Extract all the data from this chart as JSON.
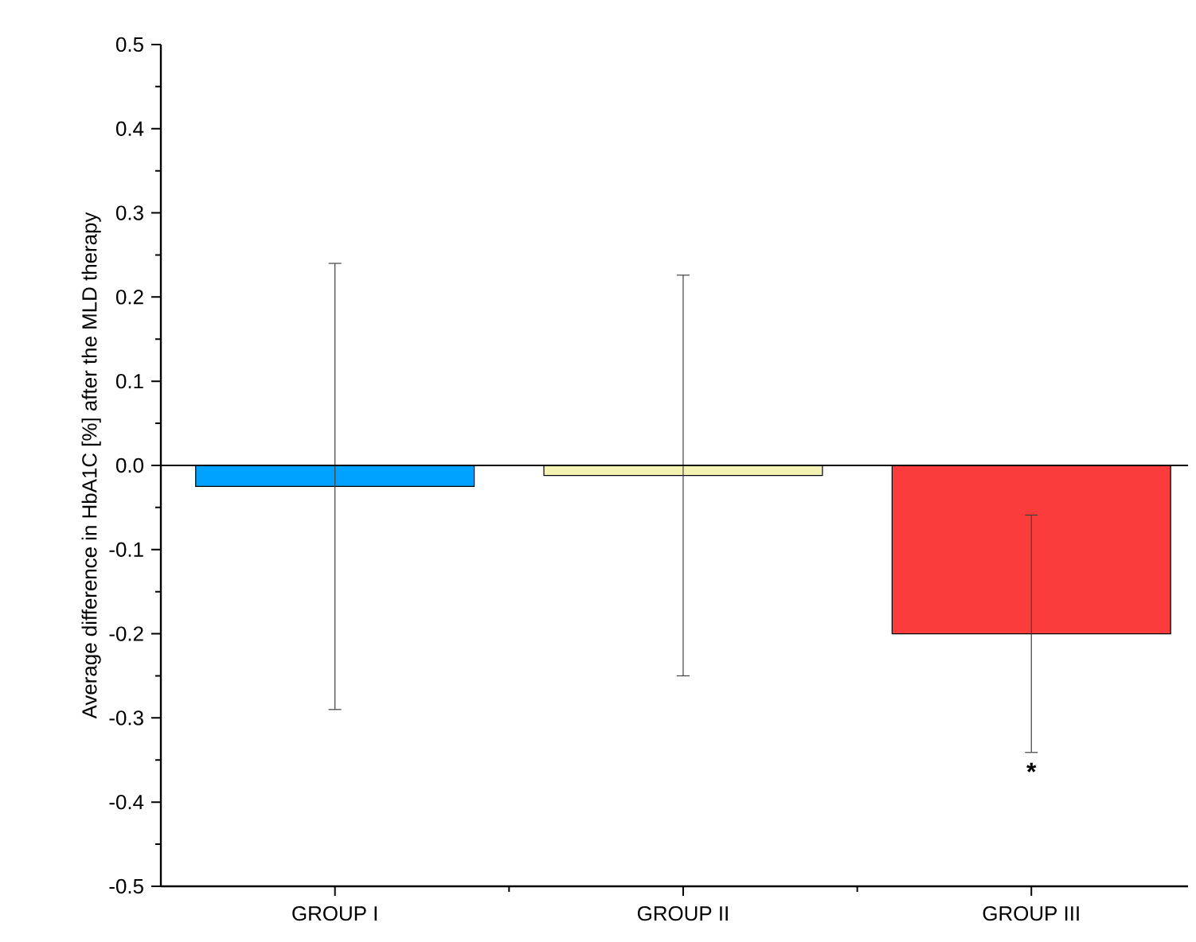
{
  "chart_data": {
    "type": "bar",
    "ylabel": "Average difference in HbA1C [%] after the MLD therapy",
    "categories": [
      "GROUP I",
      "GROUP II",
      "GROUP III"
    ],
    "values": [
      -0.025,
      -0.012,
      -0.2
    ],
    "errors": [
      0.265,
      0.238,
      0.141
    ],
    "colors": [
      "#00a2ff",
      "#f5f3b4",
      "#fa3c3c"
    ],
    "ylim": [
      -0.5,
      0.5
    ],
    "yticks": [
      -0.5,
      -0.4,
      -0.3,
      -0.2,
      -0.1,
      {
        "value": 0,
        "label": "0.0"
      },
      0.1,
      0.2,
      0.3,
      0.4,
      0.5
    ],
    "annotations": [
      "*"
    ]
  }
}
